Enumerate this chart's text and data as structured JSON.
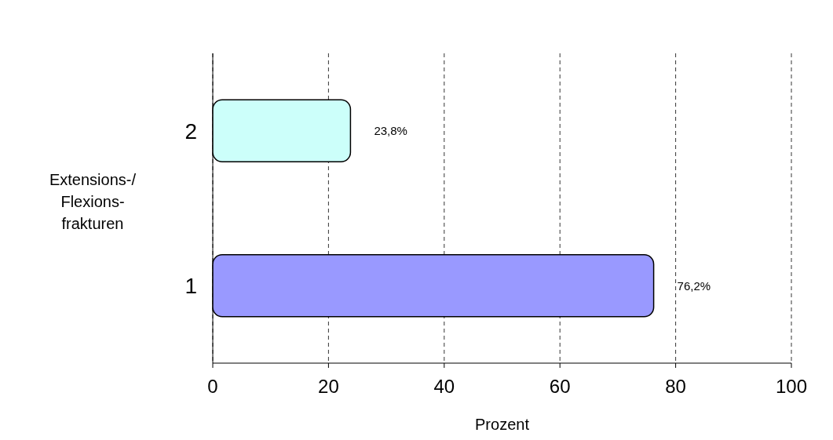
{
  "chart_data": {
    "type": "bar",
    "orientation": "horizontal",
    "xlabel": "Prozent",
    "ylabel": "Extensions-/ Flexions- frakturen",
    "categories": [
      "2",
      "1"
    ],
    "values": [
      23.8,
      76.2
    ],
    "colors": [
      "#ccfffa",
      "#9999ff"
    ],
    "value_labels": [
      "23,8%",
      "76,2%"
    ],
    "xlim": [
      0,
      100
    ],
    "xticks": [
      0,
      20,
      40,
      60,
      80,
      100
    ],
    "grid": "x",
    "line_style": "dashed"
  }
}
